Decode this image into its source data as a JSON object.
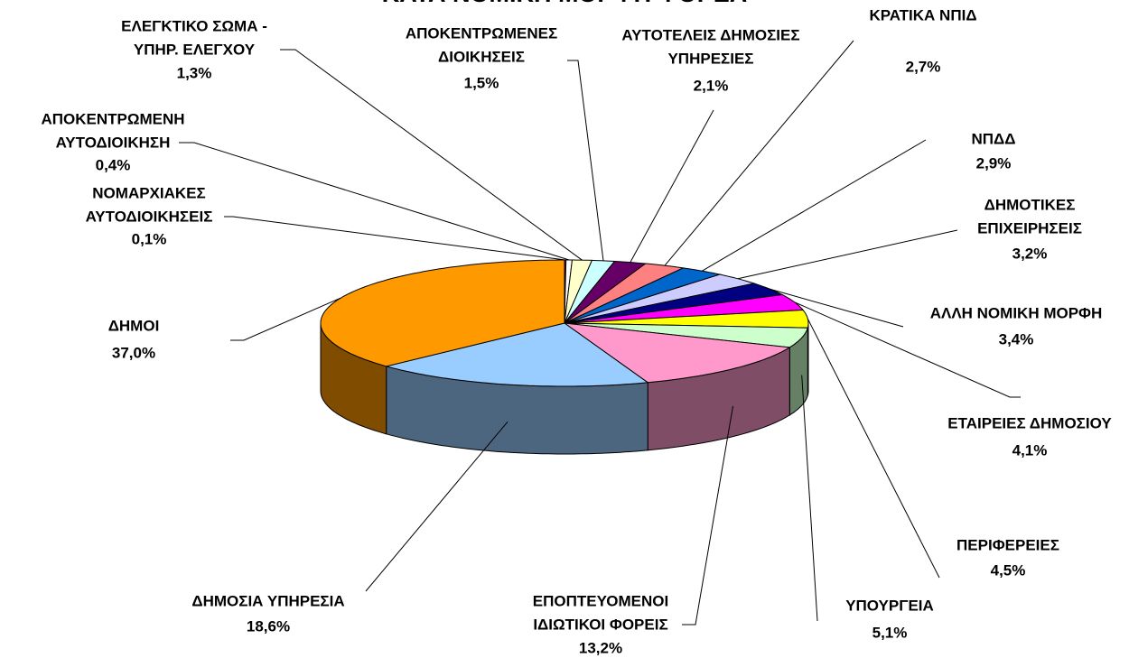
{
  "chart_data": {
    "type": "pie3d",
    "title": "ΚΑΤΑ ΝΟΜΙΚΗ ΜΟΡΦΗ ΦΟΡΕΑ",
    "categories": [
      [
        "ΝΟΜΑΡΧΙΑΚΕΣ",
        "ΑΥΤΟΔΙΟΙΚΗΣΕΙΣ"
      ],
      [
        "ΑΠΟΚΕΝΤΡΩΜΕΝΗ",
        "ΑΥΤΟΔΙΟΙΚΗΣΗ"
      ],
      [
        "ΕΛΕΓΚΤΙΚΟ ΣΩΜΑ -",
        "ΥΠΗΡ. ΕΛΕΓΧΟΥ"
      ],
      [
        "ΑΠΟΚΕΝΤΡΩΜΕΝΕΣ",
        "ΔΙΟΙΚΗΣΕΙΣ"
      ],
      [
        "ΑΥΤΟΤΕΛΕΙΣ ΔΗΜΟΣΙΕΣ",
        "ΥΠΗΡΕΣΙΕΣ"
      ],
      [
        "ΚΡΑΤΙΚΑ ΝΠΙΔ"
      ],
      [
        "ΝΠΔΔ"
      ],
      [
        "ΔΗΜΟΤΙΚΕΣ",
        "ΕΠΙΧΕΙΡΗΣΕΙΣ"
      ],
      [
        "ΑΛΛΗ ΝΟΜΙΚΗ ΜΟΡΦΗ"
      ],
      [
        "ΕΤΑΙΡΕΙΕΣ ΔΗΜΟΣΙΟΥ"
      ],
      [
        "ΠΕΡΙΦΕΡΕΙΕΣ"
      ],
      [
        "ΥΠΟΥΡΓΕΙΑ"
      ],
      [
        "ΕΠΟΠΤΕΥΟΜΕΝΟΙ",
        "ΙΔΙΩΤΙΚΟΙ ΦΟΡΕΙΣ"
      ],
      [
        "ΔΗΜΟΣΙΑ ΥΠΗΡΕΣΙΑ"
      ],
      [
        "ΔΗΜΟΙ"
      ]
    ],
    "values": [
      0.1,
      0.4,
      1.3,
      1.5,
      2.1,
      2.7,
      2.9,
      3.2,
      3.4,
      4.1,
      4.5,
      5.1,
      13.2,
      18.6,
      37.0
    ],
    "value_labels": [
      "0,1%",
      "0,4%",
      "1,3%",
      "1,5%",
      "2,1%",
      "2,7%",
      "2,9%",
      "3,2%",
      "3,4%",
      "4,1%",
      "4,5%",
      "5,1%",
      "13,2%",
      "18,6%",
      "37,0%"
    ],
    "colors": [
      "#800080",
      "#ffffff",
      "#ffffcc",
      "#ccffff",
      "#660066",
      "#ff8080",
      "#0066cc",
      "#ccccff",
      "#000080",
      "#ff00ff",
      "#ffff00",
      "#ccffcc",
      "#ff99cc",
      "#99ccff",
      "#ff9900"
    ]
  }
}
